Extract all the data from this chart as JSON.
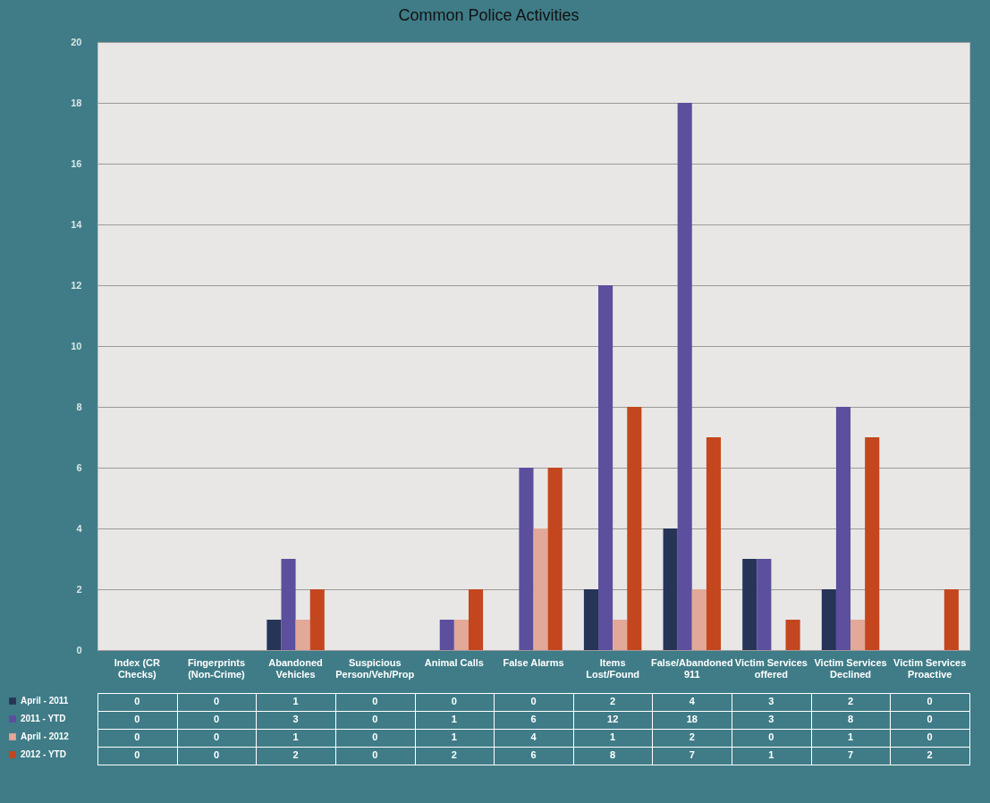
{
  "chart_data": {
    "type": "bar",
    "title": "Common Police Activities",
    "categories": [
      "Index (CR Checks)",
      "Fingerprints (Non-Crime)",
      "Abandoned Vehicles",
      "Suspicious Person/Veh/Prop",
      "Animal Calls",
      "False Alarms",
      "Items Lost/Found",
      "False/Abandoned 911",
      "Victim Services offered",
      "Victim Services Declined",
      "Victim Services Proactive"
    ],
    "series": [
      {
        "name": "April - 2011",
        "color": "#263458",
        "values": [
          0,
          0,
          1,
          0,
          0,
          0,
          2,
          4,
          3,
          2,
          0
        ]
      },
      {
        "name": "2011 - YTD",
        "color": "#5b4f9e",
        "values": [
          0,
          0,
          3,
          0,
          1,
          6,
          12,
          18,
          3,
          8,
          0
        ]
      },
      {
        "name": "April - 2012",
        "color": "#e2a898",
        "values": [
          0,
          0,
          1,
          0,
          1,
          4,
          1,
          2,
          0,
          1,
          0
        ]
      },
      {
        "name": "2012 - YTD",
        "color": "#c4461f",
        "values": [
          0,
          0,
          2,
          0,
          2,
          6,
          8,
          7,
          1,
          7,
          2
        ]
      }
    ],
    "ylim": [
      0,
      20
    ],
    "yticks": [
      0,
      2,
      4,
      6,
      8,
      10,
      12,
      14,
      16,
      18,
      20
    ],
    "grid": "y",
    "legend": "bottom",
    "data_labels": true
  }
}
